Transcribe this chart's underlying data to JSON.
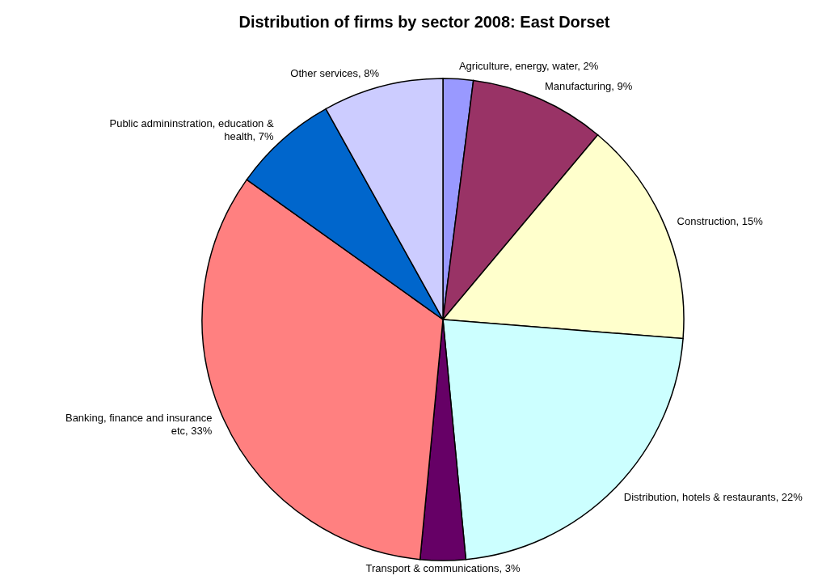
{
  "chart_data": {
    "type": "pie",
    "title": "Distribution of firms by sector 2008: East Dorset",
    "categories": [
      "Agriculture, energy, water",
      "Manufacturing",
      "Construction",
      "Distribution, hotels & restaurants",
      "Transport & communications",
      "Banking, finance and insurance etc",
      "Public admininstration, education & health",
      "Other services"
    ],
    "values": [
      2,
      9,
      15,
      22,
      3,
      33,
      7,
      8
    ],
    "value_labels": [
      "2%",
      "9%",
      "15%",
      "22%",
      "3%",
      "33%",
      "7%",
      "8%"
    ],
    "colors": [
      "#9999ff",
      "#993366",
      "#ffffcc",
      "#ccffff",
      "#660066",
      "#ff8080",
      "#0066cc",
      "#ccccff"
    ]
  }
}
